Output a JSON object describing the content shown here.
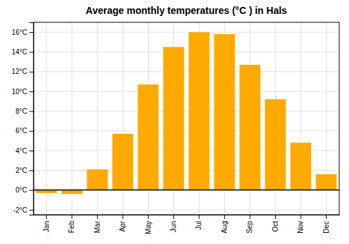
{
  "chart_data": {
    "type": "bar",
    "title": "Average monthly temperatures (°C ) in Hals",
    "categories": [
      "Jan",
      "Feb",
      "Mar",
      "Apr",
      "May",
      "Jun",
      "Jul",
      "Aug",
      "Sep",
      "Oct",
      "Nov",
      "Dec"
    ],
    "values": [
      -0.3,
      -0.4,
      2.1,
      5.7,
      10.7,
      14.5,
      16.0,
      15.8,
      12.7,
      9.2,
      4.8,
      1.6
    ],
    "color": "#FFAA00",
    "ylim": [
      -2.5,
      17
    ],
    "yticks": [
      {
        "value": -2,
        "label": "-2°C"
      },
      {
        "value": 0,
        "label": "0°C"
      },
      {
        "value": 2,
        "label": "2°C"
      },
      {
        "value": 4,
        "label": "4°C"
      },
      {
        "value": 6,
        "label": "6°C"
      },
      {
        "value": 8,
        "label": "8°C"
      },
      {
        "value": 10,
        "label": "10°C"
      },
      {
        "value": 12,
        "label": "12°C"
      },
      {
        "value": 14,
        "label": "14°C"
      },
      {
        "value": 16,
        "label": "16°C"
      }
    ],
    "grid": true
  }
}
